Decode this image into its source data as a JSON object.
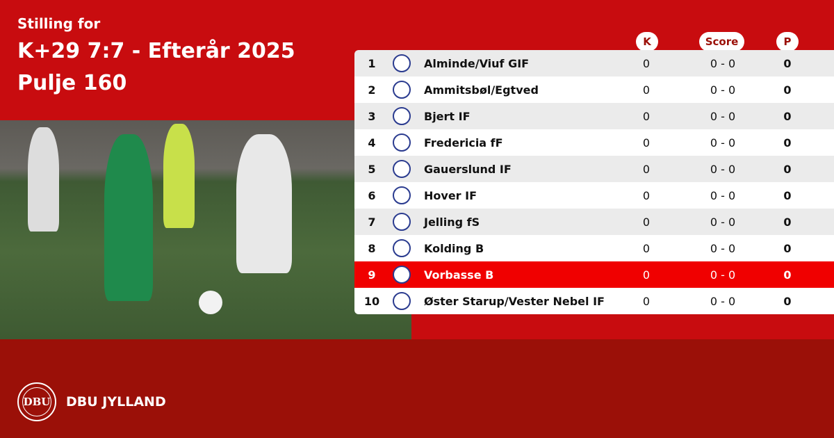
{
  "header": {
    "subtitle": "Stilling for",
    "title": "K+29 7:7 - Efterår 2025",
    "pool": "Pulje 160"
  },
  "columns": {
    "k": "K",
    "score": "Score",
    "p": "P"
  },
  "rows": [
    {
      "pos": "1",
      "team": "Alminde/Viuf GIF",
      "k": "0",
      "score": "0 - 0",
      "p": "0"
    },
    {
      "pos": "2",
      "team": "Ammitsbøl/Egtved",
      "k": "0",
      "score": "0 - 0",
      "p": "0"
    },
    {
      "pos": "3",
      "team": "Bjert IF",
      "k": "0",
      "score": "0 - 0",
      "p": "0"
    },
    {
      "pos": "4",
      "team": "Fredericia fF",
      "k": "0",
      "score": "0 - 0",
      "p": "0"
    },
    {
      "pos": "5",
      "team": "Gauerslund IF",
      "k": "0",
      "score": "0 - 0",
      "p": "0"
    },
    {
      "pos": "6",
      "team": "Hover IF",
      "k": "0",
      "score": "0 - 0",
      "p": "0"
    },
    {
      "pos": "7",
      "team": "Jelling fS",
      "k": "0",
      "score": "0 - 0",
      "p": "0"
    },
    {
      "pos": "8",
      "team": "Kolding B",
      "k": "0",
      "score": "0 - 0",
      "p": "0"
    },
    {
      "pos": "9",
      "team": "Vorbasse B",
      "k": "0",
      "score": "0 - 0",
      "p": "0",
      "highlighted": true
    },
    {
      "pos": "10",
      "team": "Øster Starup/Vester Nebel IF",
      "k": "0",
      "score": "0 - 0",
      "p": "0"
    }
  ],
  "footer": {
    "brand": "DBU JYLLAND",
    "seal_text": "DBU"
  },
  "colors": {
    "top": "#c80c0f",
    "bottom": "#9b1008",
    "highlight": "#f00000"
  }
}
